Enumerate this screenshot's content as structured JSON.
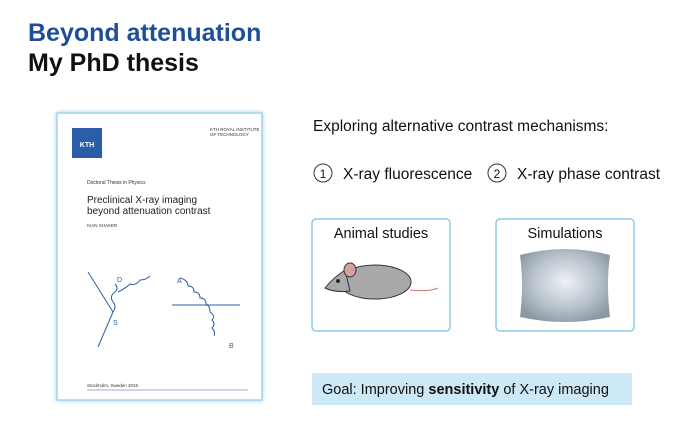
{
  "header": {
    "title": "Beyond attenuation",
    "subtitle": "My PhD thesis"
  },
  "thesis_cover": {
    "logo": "KTH",
    "institute_lines": [
      "KTH ROYAL INSTITUTE",
      "OF TECHNOLOGY"
    ],
    "series": "Doctoral Thesis in Physics",
    "title_lines": [
      "Preclinical X-ray imaging",
      "beyond attenuation contrast"
    ],
    "author": "KIAN SHAKER",
    "diagram_labels": [
      "D",
      "S",
      "A",
      "B"
    ],
    "footer": "Stockholm, Sweden 2015"
  },
  "content": {
    "intro": "Exploring alternative contrast mechanisms:",
    "items": [
      {
        "number": "1",
        "label": "X-ray fluorescence"
      },
      {
        "number": "2",
        "label": "X-ray phase contrast"
      }
    ],
    "boxes": [
      "Animal studies",
      "Simulations"
    ],
    "goal": {
      "parts": [
        "Goal: Improving ",
        "sensitivity",
        " of X-ray imaging"
      ]
    }
  }
}
